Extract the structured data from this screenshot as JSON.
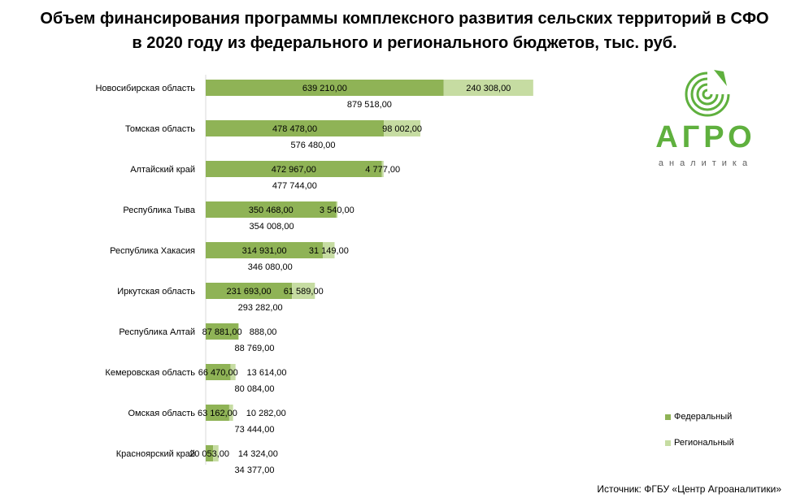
{
  "title_line1": "Объем финансирования программы комплексного развития сельских территорий в СФО",
  "title_line2": "в 2020 году из федерального и регионального бюджетов, тыс. руб.",
  "source": "Источник: ФГБУ «Центр Агроаналитики»",
  "logo": {
    "name": "АГРО",
    "subtitle": "аналитика"
  },
  "colors": {
    "federal": "#8fb356",
    "regional": "#c6dca2",
    "logo_green": "#5fb03e"
  },
  "chart_data": {
    "type": "bar",
    "orientation": "horizontal",
    "stacked": true,
    "title": "Объем финансирования программы комплексного развития сельских территорий в СФО в 2020 году из федерального и регионального бюджетов, тыс. руб.",
    "categories": [
      "Новосибирская область",
      "Томская область",
      "Алтайский край",
      "Республика Тыва",
      "Республика Хакасия",
      "Иркутская область",
      "Республика Алтай",
      "Кемеровская область",
      "Омская область",
      "Красноярский край"
    ],
    "series": [
      {
        "name": "Федеральный",
        "values": [
          639210,
          478478,
          472967,
          350468,
          314931,
          231693,
          87881,
          66470,
          63162,
          20053
        ],
        "labels": [
          "639 210,00",
          "478 478,00",
          "472 967,00",
          "350 468,00",
          "314 931,00",
          "231 693,00",
          "87 881,00",
          "66 470,00",
          "63 162,00",
          "20 053,00"
        ]
      },
      {
        "name": "Региональный",
        "values": [
          240308,
          98002,
          4777,
          3540,
          31149,
          61589,
          888,
          13614,
          10282,
          14324
        ],
        "labels": [
          "240 308,00",
          "98 002,00",
          "4 777,00",
          "3 540,00",
          "31 149,00",
          "61 589,00",
          "888,00",
          "13 614,00",
          "10 282,00",
          "14 324,00"
        ]
      }
    ],
    "totals": [
      879518,
      576480,
      477744,
      354008,
      346080,
      293282,
      88769,
      80084,
      73444,
      34377
    ],
    "total_labels": [
      "879 518,00",
      "576 480,00",
      "477 744,00",
      "354 008,00",
      "346 080,00",
      "293 282,00",
      "88 769,00",
      "80 084,00",
      "73 444,00",
      "34 377,00"
    ],
    "xlim": [
      0,
      1000000
    ],
    "grid": false,
    "legend_position": "bottom-right"
  }
}
